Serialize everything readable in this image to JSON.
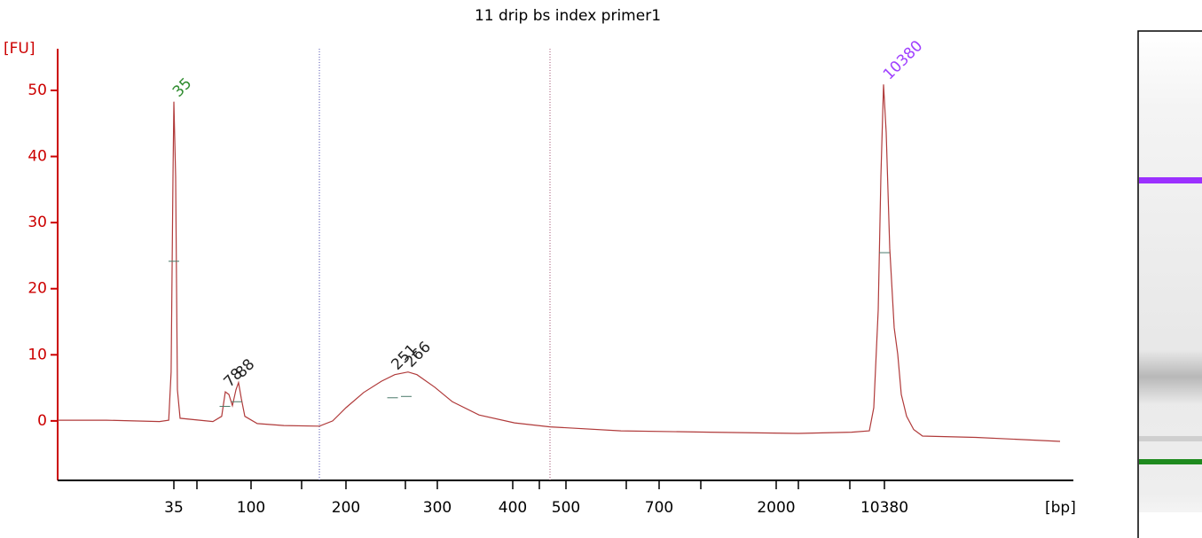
{
  "chart_data": {
    "type": "electropherogram",
    "title": "11 drip bs index primer1",
    "ylabel": "[FU]",
    "xlabel": "[bp]",
    "color": "#b03a3a",
    "axis_color": "#cc0000",
    "xlim": [
      10,
      17000
    ],
    "xticks": [
      35,
      100,
      200,
      300,
      400,
      500,
      700,
      2000,
      10380
    ],
    "ylim": [
      -9,
      56.3
    ],
    "yticks": [
      0,
      10,
      20,
      30,
      40,
      50
    ],
    "x": [
      10,
      20.5,
      31.9,
      33.9,
      34.4,
      34.8,
      35,
      36.5,
      38,
      40.2,
      67.9,
      75.3,
      78.3,
      81.3,
      84.3,
      87.3,
      89.5,
      91.8,
      94.8,
      106.5,
      134.6,
      172,
      186,
      200,
      219.4,
      238.8,
      253.4,
      268,
      277.7,
      297.1,
      320,
      355.3,
      403.3,
      470,
      618,
      1261,
      3717,
      7839,
      9213,
      9556,
      9899,
      10105,
      10311,
      10447,
      10581,
      10748,
      10881,
      11015,
      11216,
      11483,
      11817,
      13823,
      17000
    ],
    "y": [
      0.1,
      0.1,
      -0.1,
      0.1,
      7.4,
      36.9,
      48.3,
      36.9,
      4.7,
      0.4,
      -0.1,
      0.7,
      4.4,
      4.0,
      2.3,
      4.7,
      5.8,
      3.4,
      0.7,
      -0.4,
      -0.7,
      -0.8,
      0,
      2.0,
      4.3,
      6.0,
      7.0,
      7.4,
      7.0,
      5.1,
      2.9,
      0.9,
      -0.3,
      -0.9,
      -1.5,
      -1.7,
      -1.9,
      -1.7,
      -1.5,
      2.0,
      16.8,
      36.9,
      50.9,
      43.6,
      26.1,
      14.1,
      10.1,
      4.0,
      0.7,
      -1.3,
      -2.3,
      -2.5,
      -3.1
    ],
    "regions": [
      172,
      470
    ],
    "peaks": [
      {
        "size": 35,
        "fu": 48.3,
        "color": "#2e8b2e"
      },
      {
        "size": 78,
        "fu": 4.4,
        "color": "#222222"
      },
      {
        "size": 88,
        "fu": 5.8,
        "color": "#222222"
      },
      {
        "size": 251,
        "fu": 7.0,
        "color": "#222222"
      },
      {
        "size": 266,
        "fu": 7.4,
        "color": "#222222"
      },
      {
        "size": 10380,
        "fu": 50.9,
        "color": "#a040ff"
      }
    ]
  }
}
